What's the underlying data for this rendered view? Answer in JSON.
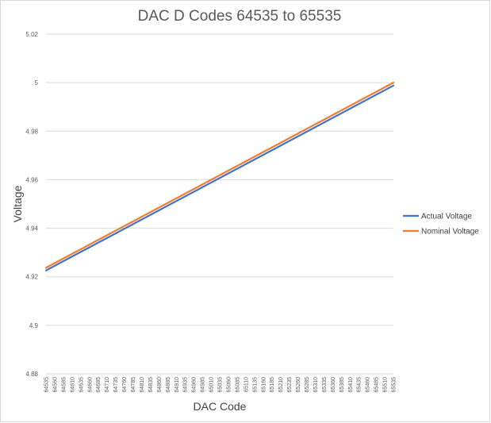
{
  "chart_data": {
    "type": "line",
    "title": "DAC D Codes 64535 to 65535",
    "xlabel": "DAC Code",
    "ylabel": "Voltage",
    "ylim": [
      4.88,
      5.02
    ],
    "yticks": [
      "4.88",
      "4.9",
      "4.92",
      "4.94",
      "4.96",
      "4.98",
      "5",
      "5.02"
    ],
    "categories": [
      "64535",
      "64560",
      "64585",
      "64610",
      "64635",
      "64660",
      "64685",
      "64710",
      "64735",
      "64760",
      "64785",
      "64810",
      "64835",
      "64860",
      "64885",
      "64910",
      "64935",
      "64960",
      "64985",
      "65010",
      "65035",
      "65060",
      "65085",
      "65110",
      "65135",
      "65160",
      "65185",
      "65210",
      "65235",
      "65260",
      "65285",
      "65310",
      "65335",
      "65360",
      "65385",
      "65410",
      "65435",
      "65460",
      "65485",
      "65510",
      "65535"
    ],
    "grid": true,
    "legend_position": "right",
    "series": [
      {
        "name": "Actual Voltage",
        "color": "#4472c4",
        "start": 4.9226,
        "end": 4.9988
      },
      {
        "name": "Nominal Voltage",
        "color": "#ed7d31",
        "start": 4.9237,
        "end": 5.0
      }
    ]
  }
}
